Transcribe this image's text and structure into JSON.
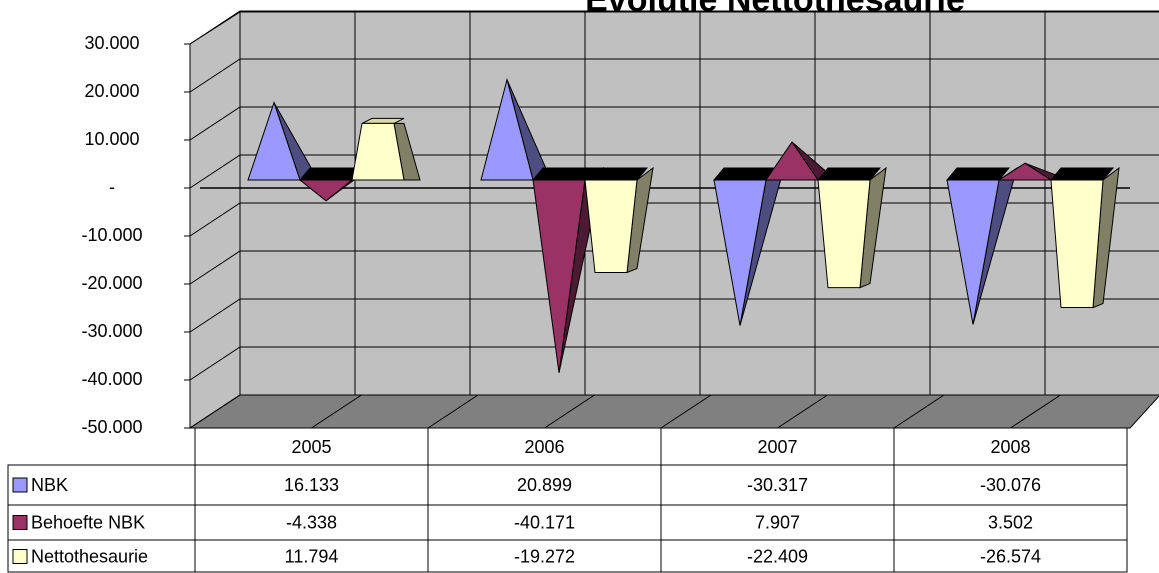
{
  "chart_data": {
    "type": "bar3d",
    "title": "Evolutie Nettothesaurie",
    "categories": [
      "2005",
      "2006",
      "2007",
      "2008"
    ],
    "series": [
      {
        "name": "NBK",
        "color": "#9999ff",
        "shape": "pyramid",
        "values": [
          16133,
          20899,
          -30317,
          -30076
        ],
        "value_labels": [
          "16.133",
          "20.899",
          "-30.317",
          "-30.076"
        ]
      },
      {
        "name": "Behoefte NBK",
        "color": "#993366",
        "shape": "pyramid",
        "values": [
          -4338,
          -40171,
          7907,
          3502
        ],
        "value_labels": [
          "-4.338",
          "-40.171",
          "7.907",
          "3.502"
        ]
      },
      {
        "name": "Nettothesaurie",
        "color": "#ffffcc",
        "shape": "frustum",
        "values": [
          11794,
          -19272,
          -22409,
          -26574
        ],
        "value_labels": [
          "11.794",
          "-19.272",
          "-22.409",
          "-26.574"
        ]
      }
    ],
    "ylim": [
      -50000,
      30000
    ],
    "yticks": [
      {
        "value": 30000,
        "label": "30.000"
      },
      {
        "value": 20000,
        "label": "20.000"
      },
      {
        "value": 10000,
        "label": "10.000"
      },
      {
        "value": 0,
        "label": "-"
      },
      {
        "value": -10000,
        "label": "-10.000"
      },
      {
        "value": -20000,
        "label": "-20.000"
      },
      {
        "value": -30000,
        "label": "-30.000"
      },
      {
        "value": -40000,
        "label": "-40.000"
      },
      {
        "value": -50000,
        "label": "-50.000"
      }
    ],
    "grid": true,
    "data_table": true
  }
}
